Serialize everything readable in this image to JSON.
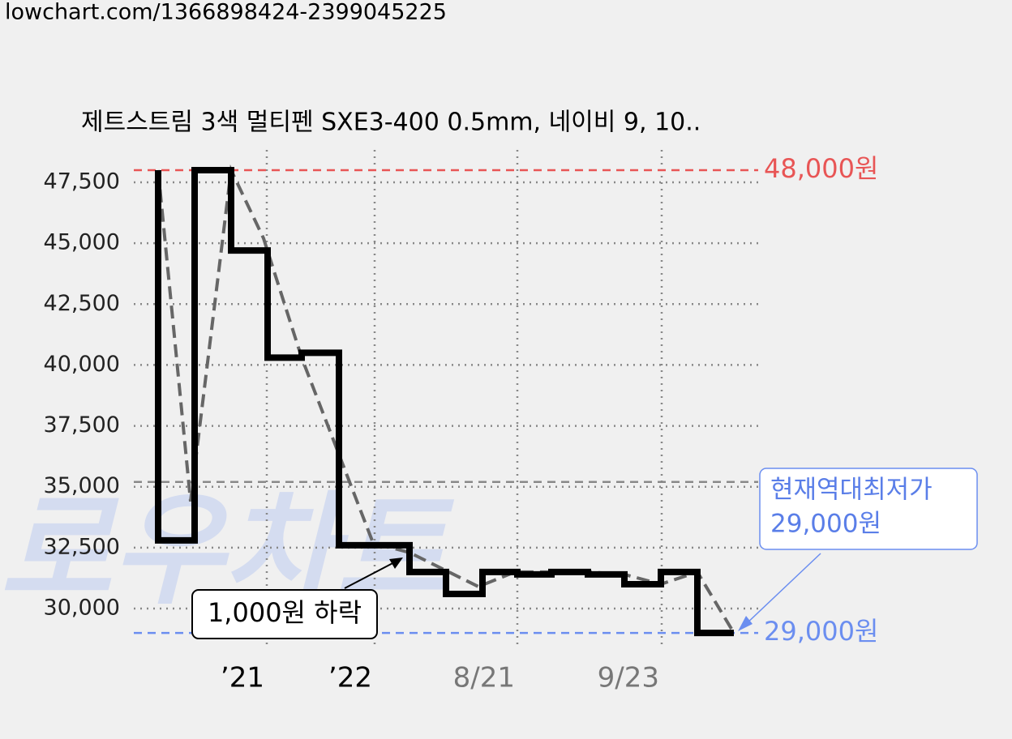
{
  "url": "lowchart.com/1366898424-2399045225",
  "watermark": "로우차트",
  "chart_data": {
    "type": "step",
    "title": "제트스트림 3색 멀티펜 SXE3-400 0.5mm, 네이비 9, 10..",
    "xlim": [
      0,
      770
    ],
    "ylim": [
      28370,
      48830
    ],
    "xticks": [
      {
        "value": 164,
        "label": "’21"
      },
      {
        "value": 297,
        "label": "’22"
      },
      {
        "value": 473,
        "label": "8/21"
      },
      {
        "value": 651,
        "label": "9/23"
      }
    ],
    "xtick_colors": [
      "#000000",
      "#000000",
      "#777777",
      "#777777"
    ],
    "yticks": [
      {
        "value": 30000,
        "label": "30,000"
      },
      {
        "value": 32500,
        "label": "32,500"
      },
      {
        "value": 35000,
        "label": "35,000"
      },
      {
        "value": 37500,
        "label": "37,500"
      },
      {
        "value": 40000,
        "label": "40,000"
      },
      {
        "value": 42500,
        "label": "42,500"
      },
      {
        "value": 45000,
        "label": "45,000"
      },
      {
        "value": 47500,
        "label": "47,500"
      }
    ],
    "grid": true,
    "series": [
      {
        "color": "#000000",
        "style": "step",
        "x": [
          30,
          30,
          75,
          120,
          165,
          207,
          253,
          340,
          385,
          430,
          473,
          515,
          560,
          605,
          650,
          695,
          740
        ],
        "values": [
          48000,
          32800,
          48000,
          44700,
          40300,
          40500,
          32600,
          31500,
          30600,
          31500,
          31400,
          31500,
          31400,
          31000,
          31500,
          29000,
          29000
        ]
      },
      {
        "color": "#666666",
        "style": "dashed",
        "x": [
          30,
          70,
          120,
          160,
          207,
          295,
          340,
          425,
          470,
          515,
          560,
          605,
          650,
          695,
          740
        ],
        "values": [
          48000,
          34400,
          48000,
          45200,
          40300,
          32700,
          32300,
          30900,
          31500,
          31500,
          31500,
          31400,
          31000,
          31500,
          29000
        ]
      }
    ],
    "reference_lines": [
      {
        "value": 48000,
        "label": "48,000원",
        "color": "#e85555"
      },
      {
        "value": 29000,
        "label": "29,000원",
        "color": "#6b8ef0"
      },
      {
        "value": 35200,
        "color": "#888888"
      }
    ],
    "annotations": [
      {
        "text": "1,000원 하락"
      },
      {
        "lines": [
          "현재역대최저가",
          "29,000원"
        ]
      }
    ]
  }
}
